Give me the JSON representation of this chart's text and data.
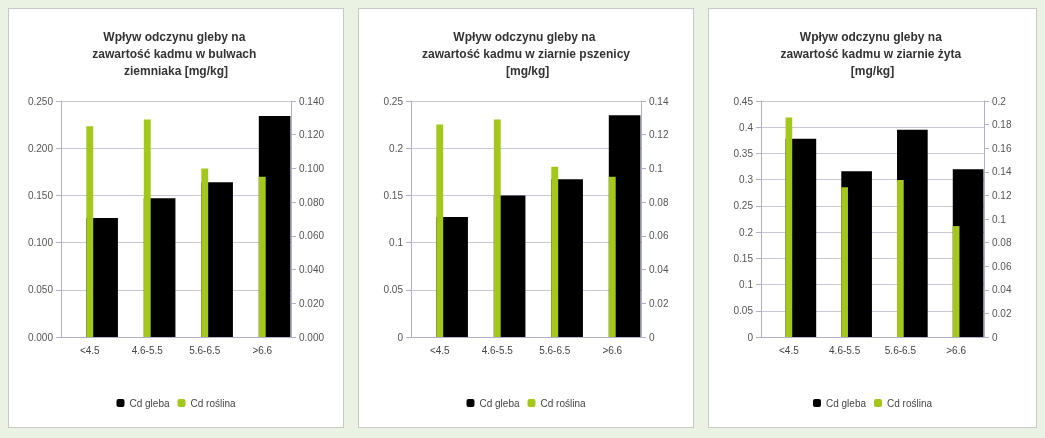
{
  "chart_data": [
    {
      "type": "bar",
      "title": "Wpływ odczynu gleby na zawartość kadmu w bulwach ziemniaka [mg/kg]",
      "categories": [
        "<4.5",
        "4.6-5.5",
        "5.6-6.5",
        ">6.6"
      ],
      "series": [
        {
          "name": "Cd gleba",
          "color": "#000000",
          "values": [
            0.126,
            0.147,
            0.164,
            0.234
          ]
        },
        {
          "name": "Cd roślina",
          "color": "#a4c71c",
          "axis": "y2",
          "values": [
            0.125,
            0.129,
            0.1,
            0.095
          ]
        }
      ],
      "ylim": [
        0,
        0.25
      ],
      "yticks": [
        {
          "value": 0,
          "label": "0.000"
        },
        {
          "value": 0.05,
          "label": "0.050"
        },
        {
          "value": 0.1,
          "label": "0.100"
        },
        {
          "value": 0.15,
          "label": "0.150"
        },
        {
          "value": 0.2,
          "label": "0.200"
        },
        {
          "value": 0.25,
          "label": "0.250"
        }
      ],
      "y2lim": [
        0,
        0.14
      ],
      "y2ticks": [
        {
          "value": 0,
          "label": "0.000"
        },
        {
          "value": 0.02,
          "label": "0.020"
        },
        {
          "value": 0.04,
          "label": "0.040"
        },
        {
          "value": 0.06,
          "label": "0.060"
        },
        {
          "value": 0.08,
          "label": "0.080"
        },
        {
          "value": 0.1,
          "label": "0.100"
        },
        {
          "value": 0.12,
          "label": "0.120"
        },
        {
          "value": 0.14,
          "label": "0.140"
        }
      ],
      "grid": "y",
      "legend": "bottom"
    },
    {
      "type": "bar",
      "title": "Wpływ odczynu gleby na zawartość kadmu w ziarnie pszenicy [mg/kg]",
      "categories": [
        "<4.5",
        "4.6-5.5",
        "5.6-6.5",
        ">6.6"
      ],
      "series": [
        {
          "name": "Cd gleba",
          "color": "#000000",
          "values": [
            0.127,
            0.15,
            0.167,
            0.235
          ]
        },
        {
          "name": "Cd roślina",
          "color": "#a4c71c",
          "axis": "y2",
          "values": [
            0.126,
            0.129,
            0.101,
            0.095
          ]
        }
      ],
      "ylim": [
        0,
        0.25
      ],
      "yticks": [
        0,
        0.05,
        0.1,
        0.15,
        0.2,
        0.25
      ],
      "y2lim": [
        0,
        0.14
      ],
      "y2ticks": [
        0,
        0.02,
        0.04,
        0.06,
        0.08,
        0.1,
        0.12,
        0.14
      ],
      "grid": "y",
      "legend": "bottom"
    },
    {
      "type": "bar",
      "title": "Wpływ odczynu gleby na zawartość kadmu w ziarnie żyta [mg/kg]",
      "categories": [
        "<4.5",
        "4.6-5.5",
        "5.6-6.5",
        ">6.6"
      ],
      "series": [
        {
          "name": "Cd gleba",
          "color": "#000000",
          "values": [
            0.378,
            0.316,
            0.395,
            0.32
          ]
        },
        {
          "name": "Cd roślina",
          "color": "#a4c71c",
          "axis": "y2",
          "values": [
            0.186,
            0.127,
            0.133,
            0.094
          ]
        }
      ],
      "ylim": [
        0,
        0.45
      ],
      "yticks": [
        0,
        0.05,
        0.1,
        0.15,
        0.2,
        0.25,
        0.3,
        0.35,
        0.4,
        0.45
      ],
      "y2lim": [
        0,
        0.2
      ],
      "y2ticks": [
        0,
        0.02,
        0.04,
        0.06,
        0.08,
        0.1,
        0.12,
        0.14,
        0.16,
        0.18,
        0.2
      ],
      "grid": "y",
      "legend": "bottom"
    }
  ]
}
